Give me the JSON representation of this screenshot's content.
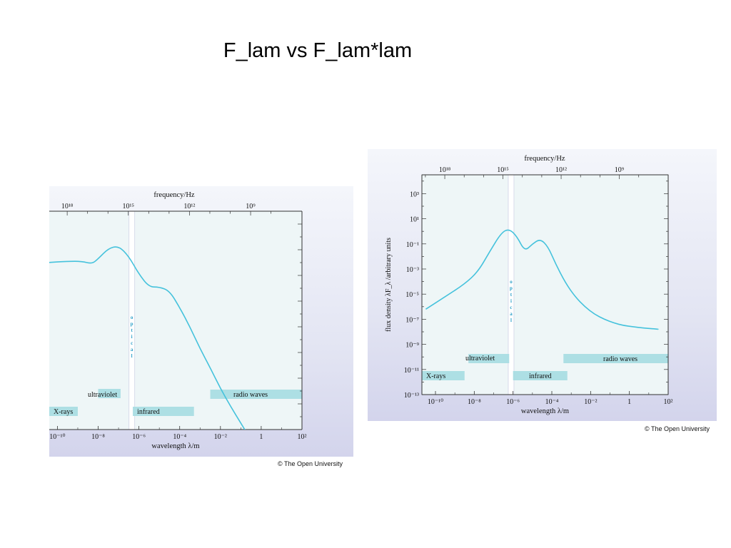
{
  "slide": {
    "title": "F_lam vs F_lam*lam"
  },
  "chart_data": [
    {
      "type": "line",
      "credit": "© The Open University",
      "x_top_label": "frequency/Hz",
      "x_top_ticks": [
        "10¹⁸",
        "10¹⁵",
        "10¹²",
        "10⁹"
      ],
      "x_top_tick_exponents": [
        18,
        15,
        12,
        9
      ],
      "xlabel": "wavelength λ/m",
      "x_scale": "log",
      "x_ticks": [
        "10⁻¹⁰",
        "10⁻⁸",
        "10⁻⁶",
        "10⁻⁴",
        "10⁻²",
        "1",
        "10²"
      ],
      "x_tick_exponents": [
        -10,
        -8,
        -6,
        -4,
        -2,
        0,
        2
      ],
      "ylabel": "",
      "y_ticks": [],
      "ylim": [
        -13,
        4
      ],
      "optical_label": "optical",
      "bands": [
        {
          "label": "X-rays",
          "from": -11,
          "to": -9
        },
        {
          "label": "ultraviolet",
          "from": -8,
          "to": -6.9
        },
        {
          "label": "infrared",
          "from": -6.3,
          "to": -3.3
        },
        {
          "label": "radio waves",
          "from": -2.5,
          "to": 2
        }
      ],
      "series": [
        {
          "values_x": [
            -10.5,
            -9.5,
            -8.8,
            -8.3,
            -8.0,
            -7.5,
            -7.0,
            -6.5,
            -6.0,
            -5.5,
            -5.0,
            -4.5,
            -4.0,
            -3.5,
            -3.0,
            -2.5,
            -2.0,
            -1.5,
            -1.0,
            -0.5
          ],
          "values_y": [
            0.0,
            0.1,
            0.1,
            -0.1,
            0.3,
            1.1,
            1.3,
            0.5,
            -0.9,
            -1.9,
            -1.9,
            -2.2,
            -3.5,
            -5.0,
            -6.7,
            -8.2,
            -9.8,
            -11.2,
            -12.5,
            -13.8
          ]
        }
      ]
    },
    {
      "type": "line",
      "credit": "© The Open University",
      "x_top_label": "frequency/Hz",
      "x_top_ticks": [
        "10¹⁸",
        "10¹⁵",
        "10¹²",
        "10⁹"
      ],
      "x_top_tick_exponents": [
        18,
        15,
        12,
        9
      ],
      "xlabel": "wavelength λ/m",
      "x_scale": "log",
      "x_ticks": [
        "10⁻¹⁰",
        "10⁻⁸",
        "10⁻⁶",
        "10⁻⁴",
        "10⁻²",
        "1",
        "10²"
      ],
      "x_tick_exponents": [
        -10,
        -8,
        -6,
        -4,
        -2,
        0,
        2
      ],
      "ylabel": "flux density λF_λ /arbitrary units",
      "y_scale": "log",
      "y_ticks": [
        "10³",
        "10¹",
        "10⁻¹",
        "10⁻³",
        "10⁻⁵",
        "10⁻⁷",
        "10⁻⁹",
        "10⁻¹¹",
        "10⁻¹³"
      ],
      "y_tick_exponents": [
        3,
        1,
        -1,
        -3,
        -5,
        -7,
        -9,
        -11,
        -13
      ],
      "ylim": [
        -13,
        4.5
      ],
      "optical_label": "optical",
      "bands": [
        {
          "label": "X-rays",
          "from": -11,
          "to": -8.5
        },
        {
          "label": "ultraviolet",
          "from": -8.3,
          "to": -6.2
        },
        {
          "label": "infrared",
          "from": -6.0,
          "to": -3.2
        },
        {
          "label": "radio waves",
          "from": -3.4,
          "to": 2
        }
      ],
      "series": [
        {
          "values_x": [
            -10.5,
            -9.5,
            -8.5,
            -7.8,
            -7.2,
            -6.6,
            -6.2,
            -5.8,
            -5.4,
            -5.0,
            -4.6,
            -4.2,
            -3.8,
            -3.3,
            -2.8,
            -2.3,
            -1.8,
            -1.3,
            -0.8,
            -0.3,
            0.2,
            0.7,
            1.2,
            1.5
          ],
          "values_y": [
            -6.2,
            -5.2,
            -4.2,
            -3.2,
            -1.6,
            -0.1,
            0.2,
            -0.4,
            -1.6,
            -1.0,
            -0.6,
            -1.2,
            -2.6,
            -4.1,
            -5.2,
            -6.0,
            -6.6,
            -7.0,
            -7.3,
            -7.5,
            -7.6,
            -7.7,
            -7.75,
            -7.8
          ]
        }
      ]
    }
  ]
}
